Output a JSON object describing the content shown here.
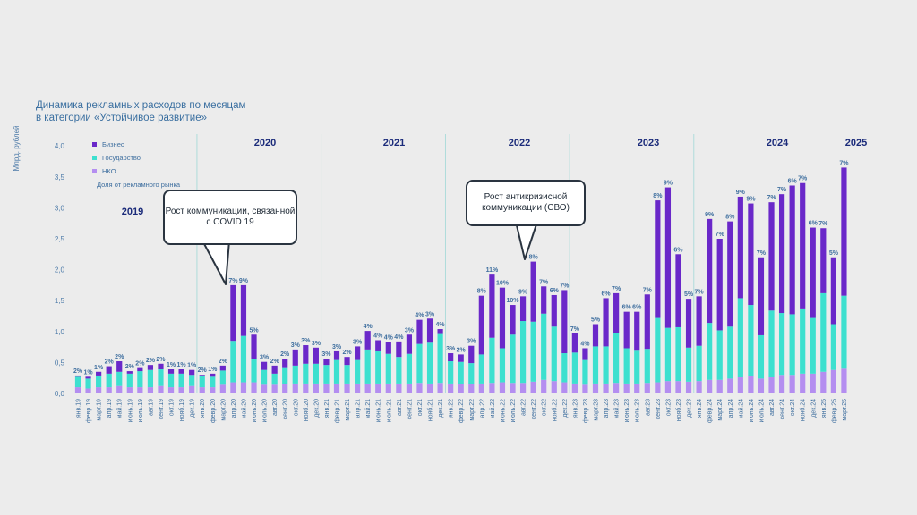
{
  "title_line1": "Динамика рекламных расходов по месяцам",
  "title_line2": "в категории «Устойчивое развитие»",
  "ylabel": "Млрд. рублей",
  "legend": {
    "business": "Бизнес",
    "government": "Государство",
    "nko": "НКО",
    "share": "Доля от рекламного рынка"
  },
  "colors": {
    "business": "#6a28c9",
    "government": "#3de0cf",
    "nko": "#b48ef0",
    "share_text": "#3f6f9f",
    "year_text": "#1b2b7a"
  },
  "callout_covid": "Рост коммуникации, связанной с COVID 19",
  "callout_svo": "Рост антикризисной коммуникации (СВО)",
  "years": [
    "2019",
    "2020",
    "2021",
    "2022",
    "2023",
    "2024",
    "2025"
  ],
  "chart_data": {
    "type": "bar",
    "stacked": true,
    "title": "Динамика рекламных расходов по месяцам в категории «Устойчивое развитие»",
    "ylabel": "Млрд. рублей",
    "ylim": [
      0,
      4.0
    ],
    "yticks": [
      "0,0",
      "0,5",
      "1,0",
      "1,5",
      "2,0",
      "2,5",
      "3,0",
      "3,5",
      "4,0"
    ],
    "categories": [
      "янв.19",
      "февр.19",
      "март.19",
      "апр.19",
      "май.19",
      "июнь.19",
      "июль.19",
      "авг.19",
      "сент.19",
      "окт.19",
      "нояб.19",
      "дек.19",
      "янв.20",
      "февр.20",
      "март.20",
      "апр.20",
      "май.20",
      "июнь.20",
      "июль.20",
      "авг.20",
      "сент.20",
      "окт.20",
      "нояб.20",
      "дек.20",
      "янв.21",
      "февр.21",
      "март.21",
      "апр.21",
      "май.21",
      "июнь.21",
      "июль.21",
      "авг.21",
      "сент.21",
      "окт.21",
      "нояб.21",
      "дек.21",
      "янв.22",
      "февр.22",
      "март.22",
      "апр.22",
      "май.22",
      "июнь.22",
      "июль.22",
      "авг.22",
      "сент.22",
      "окт.22",
      "нояб.22",
      "дек.22",
      "янв.23",
      "февр.23",
      "март.23",
      "апр.23",
      "май.23",
      "июнь.23",
      "июль.23",
      "авг.23",
      "сент.23",
      "окт.23",
      "нояб.23",
      "дек.23",
      "янв.24",
      "февр.24",
      "март.24",
      "апр.24",
      "май.24",
      "июнь.24",
      "июль.24",
      "авг.24",
      "сент.24",
      "окт.24",
      "нояб.24",
      "дек.24",
      "янв.25",
      "февр.25",
      "март.25"
    ],
    "share_labels": [
      "2%",
      "1%",
      "1%",
      "2%",
      "2%",
      "2%",
      "2%",
      "2%",
      "2%",
      "1%",
      "1%",
      "1%",
      "2%",
      "1%",
      "2%",
      "7%",
      "9%",
      "5%",
      "3%",
      "2%",
      "2%",
      "3%",
      "3%",
      "3%",
      "3%",
      "3%",
      "2%",
      "3%",
      "4%",
      "4%",
      "4%",
      "4%",
      "3%",
      "4%",
      "3%",
      "4%",
      "3%",
      "2%",
      "3%",
      "8%",
      "11%",
      "10%",
      "10%",
      "9%",
      "8%",
      "7%",
      "6%",
      "7%",
      "7%",
      "4%",
      "5%",
      "6%",
      "7%",
      "6%",
      "6%",
      "7%",
      "8%",
      "9%",
      "6%",
      "5%",
      "7%",
      "9%",
      "7%",
      "8%",
      "9%",
      "9%",
      "7%",
      "7%",
      "7%",
      "6%",
      "7%",
      "6%",
      "7%",
      "5%",
      "7%"
    ],
    "series": [
      {
        "name": "НКО",
        "values": [
          0.1,
          0.08,
          0.1,
          0.1,
          0.12,
          0.1,
          0.1,
          0.1,
          0.12,
          0.1,
          0.1,
          0.12,
          0.1,
          0.1,
          0.14,
          0.18,
          0.18,
          0.18,
          0.14,
          0.14,
          0.15,
          0.16,
          0.16,
          0.16,
          0.16,
          0.16,
          0.16,
          0.16,
          0.16,
          0.16,
          0.16,
          0.16,
          0.16,
          0.17,
          0.16,
          0.17,
          0.16,
          0.15,
          0.15,
          0.16,
          0.17,
          0.18,
          0.17,
          0.17,
          0.19,
          0.22,
          0.2,
          0.18,
          0.16,
          0.14,
          0.16,
          0.16,
          0.17,
          0.16,
          0.16,
          0.17,
          0.18,
          0.2,
          0.2,
          0.19,
          0.2,
          0.22,
          0.22,
          0.24,
          0.26,
          0.28,
          0.24,
          0.26,
          0.3,
          0.3,
          0.32,
          0.32,
          0.35,
          0.38,
          0.4
        ]
      },
      {
        "name": "Государство",
        "values": [
          0.17,
          0.16,
          0.19,
          0.22,
          0.23,
          0.22,
          0.26,
          0.28,
          0.27,
          0.22,
          0.22,
          0.18,
          0.18,
          0.17,
          0.23,
          0.67,
          0.75,
          0.37,
          0.24,
          0.18,
          0.26,
          0.29,
          0.32,
          0.32,
          0.3,
          0.38,
          0.3,
          0.38,
          0.55,
          0.52,
          0.48,
          0.43,
          0.48,
          0.63,
          0.66,
          0.79,
          0.36,
          0.36,
          0.34,
          0.47,
          0.73,
          0.55,
          0.78,
          1.0,
          0.97,
          1.07,
          0.88,
          0.47,
          0.5,
          0.4,
          0.6,
          0.6,
          0.81,
          0.57,
          0.53,
          0.55,
          1.04,
          0.86,
          0.87,
          0.55,
          0.57,
          0.92,
          0.8,
          0.84,
          1.28,
          1.15,
          0.7,
          1.08,
          1.0,
          0.98,
          1.04,
          0.9,
          1.27,
          0.74,
          1.18
        ]
      },
      {
        "name": "Бизнес",
        "values": [
          0.02,
          0.03,
          0.06,
          0.12,
          0.17,
          0.04,
          0.05,
          0.08,
          0.09,
          0.07,
          0.07,
          0.08,
          0.02,
          0.05,
          0.08,
          0.9,
          0.82,
          0.4,
          0.13,
          0.13,
          0.15,
          0.26,
          0.3,
          0.26,
          0.1,
          0.14,
          0.13,
          0.22,
          0.3,
          0.18,
          0.19,
          0.25,
          0.31,
          0.39,
          0.39,
          0.08,
          0.13,
          0.12,
          0.28,
          0.95,
          1.02,
          0.98,
          0.48,
          0.4,
          0.97,
          0.44,
          0.51,
          1.02,
          0.31,
          0.19,
          0.36,
          0.78,
          0.64,
          0.59,
          0.63,
          0.88,
          1.9,
          2.27,
          1.18,
          0.79,
          0.8,
          1.68,
          1.48,
          1.7,
          1.64,
          1.64,
          1.26,
          1.75,
          1.92,
          2.08,
          2.04,
          1.46,
          1.05,
          1.08,
          2.07
        ]
      }
    ],
    "legend_position": "top-left",
    "grid": false
  }
}
